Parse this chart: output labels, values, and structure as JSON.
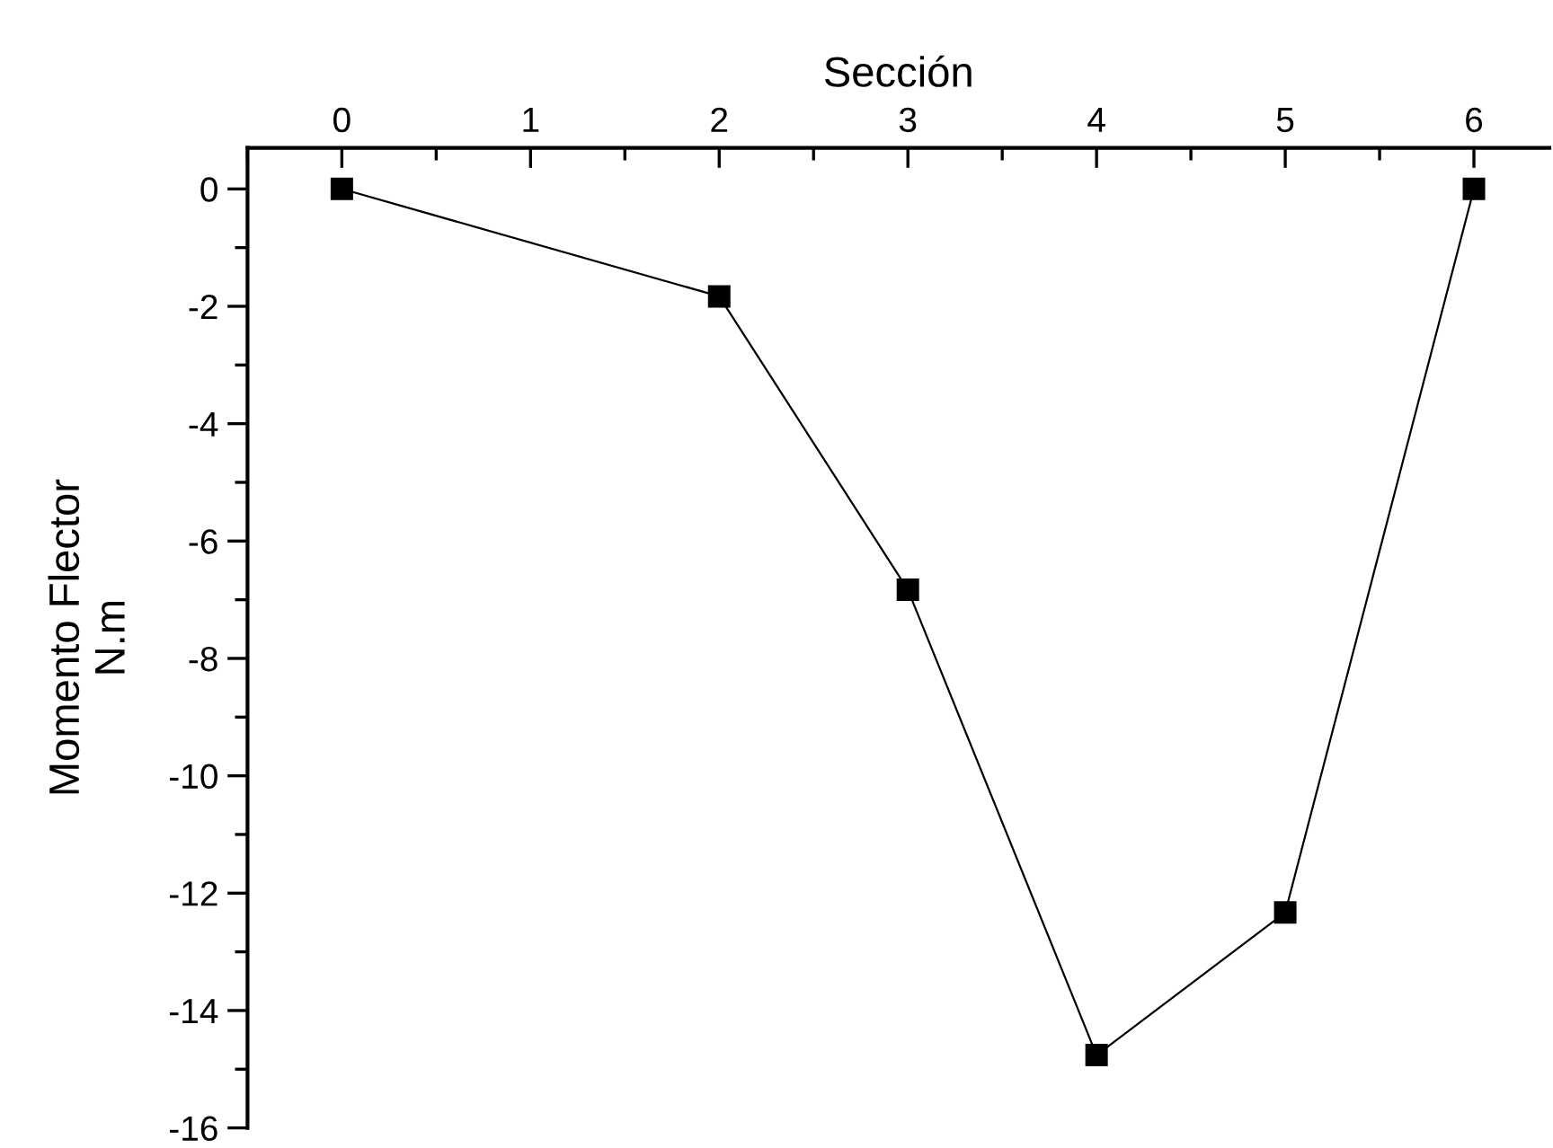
{
  "chart_data": {
    "type": "line",
    "xlabel": "Sección",
    "ylabel": "Momento Flector\nN.m",
    "x": [
      0,
      2,
      3,
      4,
      5,
      6
    ],
    "series": [
      {
        "color": "#000000",
        "values": [
          0,
          -1.83,
          -6.83,
          -14.76,
          -12.33,
          0
        ]
      }
    ],
    "xlim": [
      -0.5,
      6.4
    ],
    "ylim": [
      -16,
      0.7
    ],
    "xticks": [
      0,
      1,
      2,
      3,
      4,
      5,
      6
    ],
    "yticks": [
      0,
      -2,
      -4,
      -6,
      -8,
      -10,
      -12,
      -14,
      -16
    ],
    "marker": "square",
    "line_style": "solid",
    "grid": false,
    "legend": false
  }
}
